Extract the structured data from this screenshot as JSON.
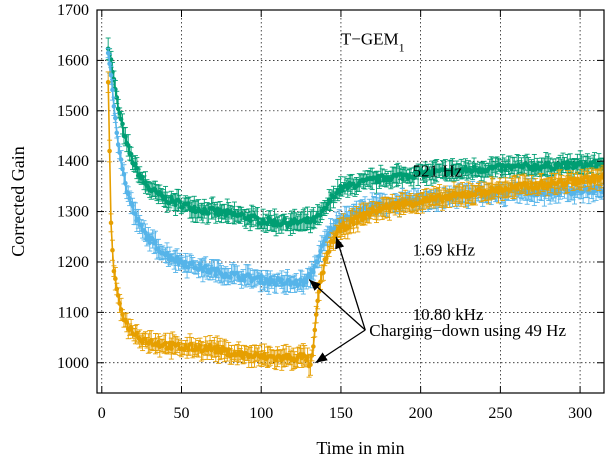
{
  "chart_data": {
    "type": "scatter",
    "title": "",
    "xlabel": "Time in min",
    "ylabel": "Corrected Gain",
    "xlim": [
      -3,
      315
    ],
    "ylim": [
      940,
      1700
    ],
    "x_ticks": [
      0,
      50,
      100,
      150,
      200,
      250,
      300
    ],
    "y_ticks": [
      1000,
      1100,
      1200,
      1300,
      1400,
      1500,
      1600,
      1700
    ],
    "grid": true,
    "error_bars": true,
    "annotations": {
      "label_text": "T−GEM",
      "label_sub": "1",
      "arrow_note": "Charging−down using 49 Hz"
    },
    "series": [
      {
        "name": "521 Hz",
        "color": "#009e73",
        "points": [
          [
            4,
            1630
          ],
          [
            6,
            1595
          ],
          [
            8,
            1550
          ],
          [
            10,
            1510
          ],
          [
            15,
            1440
          ],
          [
            20,
            1395
          ],
          [
            25,
            1365
          ],
          [
            30,
            1345
          ],
          [
            40,
            1325
          ],
          [
            50,
            1315
          ],
          [
            60,
            1305
          ],
          [
            70,
            1300
          ],
          [
            80,
            1295
          ],
          [
            90,
            1290
          ],
          [
            100,
            1282
          ],
          [
            110,
            1278
          ],
          [
            120,
            1278
          ],
          [
            128,
            1280
          ],
          [
            133,
            1282
          ],
          [
            138,
            1295
          ],
          [
            142,
            1315
          ],
          [
            146,
            1335
          ],
          [
            150,
            1345
          ],
          [
            160,
            1355
          ],
          [
            170,
            1362
          ],
          [
            180,
            1368
          ],
          [
            200,
            1375
          ],
          [
            220,
            1380
          ],
          [
            240,
            1385
          ],
          [
            260,
            1388
          ],
          [
            280,
            1390
          ],
          [
            300,
            1392
          ],
          [
            315,
            1395
          ]
        ],
        "error": 15
      },
      {
        "name": "1.69 kHz",
        "color": "#56b4e9",
        "points": [
          [
            4,
            1610
          ],
          [
            6,
            1560
          ],
          [
            8,
            1500
          ],
          [
            10,
            1445
          ],
          [
            15,
            1350
          ],
          [
            20,
            1300
          ],
          [
            25,
            1265
          ],
          [
            30,
            1245
          ],
          [
            40,
            1215
          ],
          [
            50,
            1200
          ],
          [
            60,
            1190
          ],
          [
            70,
            1182
          ],
          [
            80,
            1175
          ],
          [
            90,
            1170
          ],
          [
            100,
            1165
          ],
          [
            110,
            1160
          ],
          [
            120,
            1158
          ],
          [
            128,
            1160
          ],
          [
            132,
            1180
          ],
          [
            136,
            1210
          ],
          [
            140,
            1240
          ],
          [
            144,
            1265
          ],
          [
            150,
            1285
          ],
          [
            160,
            1300
          ],
          [
            170,
            1310
          ],
          [
            180,
            1315
          ],
          [
            200,
            1322
          ],
          [
            220,
            1330
          ],
          [
            240,
            1335
          ],
          [
            260,
            1338
          ],
          [
            280,
            1340
          ],
          [
            300,
            1342
          ],
          [
            315,
            1345
          ]
        ],
        "error": 15
      },
      {
        "name": "10.80 kHz",
        "color": "#e69f00",
        "points": [
          [
            4,
            1550
          ],
          [
            5,
            1400
          ],
          [
            6,
            1250
          ],
          [
            8,
            1170
          ],
          [
            10,
            1130
          ],
          [
            15,
            1080
          ],
          [
            20,
            1060
          ],
          [
            25,
            1048
          ],
          [
            30,
            1042
          ],
          [
            40,
            1035
          ],
          [
            50,
            1030
          ],
          [
            60,
            1030
          ],
          [
            70,
            1028
          ],
          [
            80,
            1020
          ],
          [
            90,
            1015
          ],
          [
            100,
            1012
          ],
          [
            110,
            1010
          ],
          [
            120,
            1010
          ],
          [
            128,
            1012
          ],
          [
            131,
            990
          ],
          [
            133,
            1040
          ],
          [
            136,
            1140
          ],
          [
            140,
            1200
          ],
          [
            144,
            1240
          ],
          [
            150,
            1265
          ],
          [
            160,
            1285
          ],
          [
            170,
            1300
          ],
          [
            180,
            1310
          ],
          [
            200,
            1320
          ],
          [
            220,
            1330
          ],
          [
            240,
            1340
          ],
          [
            260,
            1348
          ],
          [
            280,
            1355
          ],
          [
            300,
            1362
          ],
          [
            315,
            1368
          ]
        ],
        "error": 15
      }
    ]
  }
}
